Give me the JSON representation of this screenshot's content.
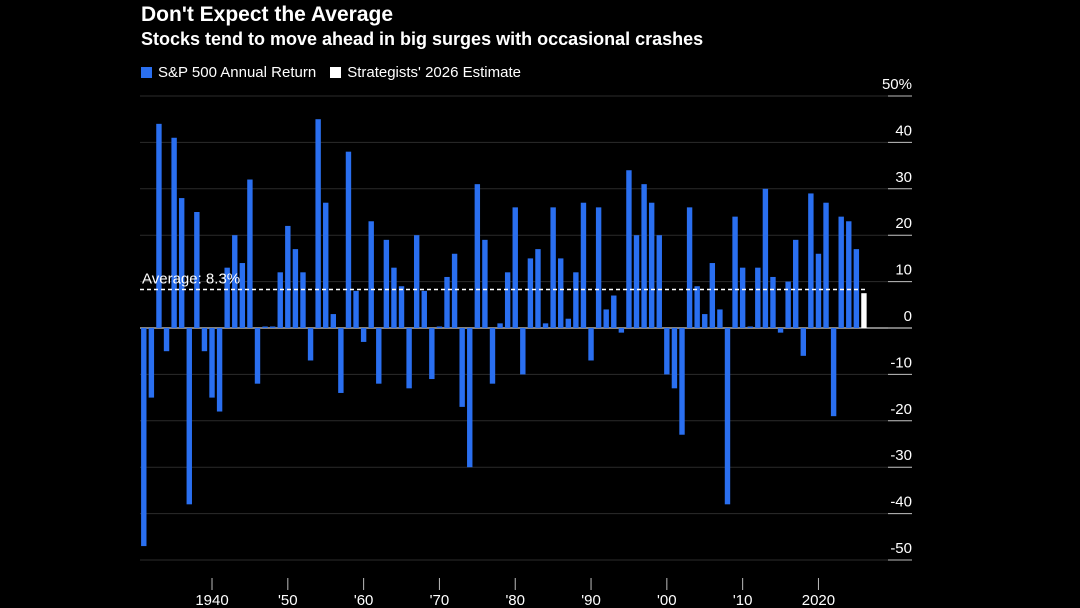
{
  "title": "Don't Expect the Average",
  "subtitle": "Stocks tend to move ahead in big surges with occasional crashes",
  "legend": [
    {
      "label": "S&P 500 Annual Return",
      "color": "#2a6ff0"
    },
    {
      "label": "Strategists' 2026 Estimate",
      "color": "#ffffff"
    }
  ],
  "chart_data": {
    "type": "bar",
    "title": "Don't Expect the Average",
    "ylabel": "",
    "xlabel": "",
    "ylim": [
      -50,
      50
    ],
    "y_ticks": [
      50,
      40,
      30,
      20,
      10,
      0,
      -10,
      -20,
      -30,
      -40,
      -50
    ],
    "y_tick_labels": [
      "50%",
      "40",
      "30",
      "20",
      "10",
      "0",
      "-10",
      "-20",
      "-30",
      "-40",
      "-50"
    ],
    "x_ticks": [
      1940,
      1950,
      1960,
      1970,
      1980,
      1990,
      2000,
      2010,
      2020
    ],
    "x_tick_labels": [
      "1940",
      "'50",
      "'60",
      "'70",
      "'80",
      "'90",
      "'00",
      "'10",
      "2020"
    ],
    "average_label": "Average: 8.3%",
    "average_value": 8.3,
    "estimate": {
      "year": 2026,
      "value": 7.5
    },
    "series": [
      {
        "name": "S&P 500 Annual Return",
        "x": [
          1931,
          1932,
          1933,
          1934,
          1935,
          1936,
          1937,
          1938,
          1939,
          1940,
          1941,
          1942,
          1943,
          1944,
          1945,
          1946,
          1947,
          1948,
          1949,
          1950,
          1951,
          1952,
          1953,
          1954,
          1955,
          1956,
          1957,
          1958,
          1959,
          1960,
          1961,
          1962,
          1963,
          1964,
          1965,
          1966,
          1967,
          1968,
          1969,
          1970,
          1971,
          1972,
          1973,
          1974,
          1975,
          1976,
          1977,
          1978,
          1979,
          1980,
          1981,
          1982,
          1983,
          1984,
          1985,
          1986,
          1987,
          1988,
          1989,
          1990,
          1991,
          1992,
          1993,
          1994,
          1995,
          1996,
          1997,
          1998,
          1999,
          2000,
          2001,
          2002,
          2003,
          2004,
          2005,
          2006,
          2007,
          2008,
          2009,
          2010,
          2011,
          2012,
          2013,
          2014,
          2015,
          2016,
          2017,
          2018,
          2019,
          2020,
          2021,
          2022,
          2023,
          2024,
          2025
        ],
        "values": [
          -47,
          -15,
          44,
          -5,
          41,
          28,
          -38,
          25,
          -5,
          -15,
          -18,
          13,
          20,
          14,
          32,
          -12,
          0,
          0,
          12,
          22,
          17,
          12,
          -7,
          45,
          27,
          3,
          -14,
          38,
          8,
          -3,
          23,
          -12,
          19,
          13,
          9,
          -13,
          20,
          8,
          -11,
          0,
          11,
          16,
          -17,
          -30,
          31,
          19,
          -12,
          1,
          12,
          26,
          -10,
          15,
          17,
          1,
          26,
          15,
          2,
          12,
          27,
          -7,
          26,
          4,
          7,
          -1,
          34,
          20,
          31,
          27,
          20,
          -10,
          -13,
          -23,
          26,
          9,
          3,
          14,
          4,
          -38,
          24,
          13,
          0,
          13,
          30,
          11,
          -1,
          10,
          19,
          -6,
          29,
          16,
          27,
          -19,
          24,
          23,
          17
        ]
      }
    ]
  }
}
